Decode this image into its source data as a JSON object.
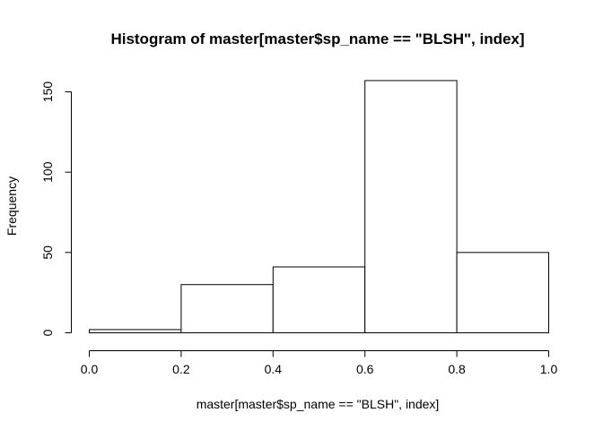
{
  "chart_data": {
    "type": "bar",
    "title": "Histogram of master[master$sp_name == \"BLSH\", index]",
    "xlabel": "master[master$sp_name == \"BLSH\", index]",
    "ylabel": "Frequency",
    "bins": [
      {
        "from": 0.0,
        "to": 0.2,
        "count": 2
      },
      {
        "from": 0.2,
        "to": 0.4,
        "count": 30
      },
      {
        "from": 0.4,
        "to": 0.6,
        "count": 41
      },
      {
        "from": 0.6,
        "to": 0.8,
        "count": 157
      },
      {
        "from": 0.8,
        "to": 1.0,
        "count": 50
      }
    ],
    "xlim": [
      0.0,
      1.0
    ],
    "ylim": [
      0,
      157
    ],
    "x_ticks": [
      "0.0",
      "0.2",
      "0.4",
      "0.6",
      "0.8",
      "1.0"
    ],
    "y_ticks": [
      "0",
      "50",
      "100",
      "150"
    ],
    "grid": false,
    "colors": {
      "bar_fill": "#ffffff",
      "bar_stroke": "#000000"
    }
  }
}
